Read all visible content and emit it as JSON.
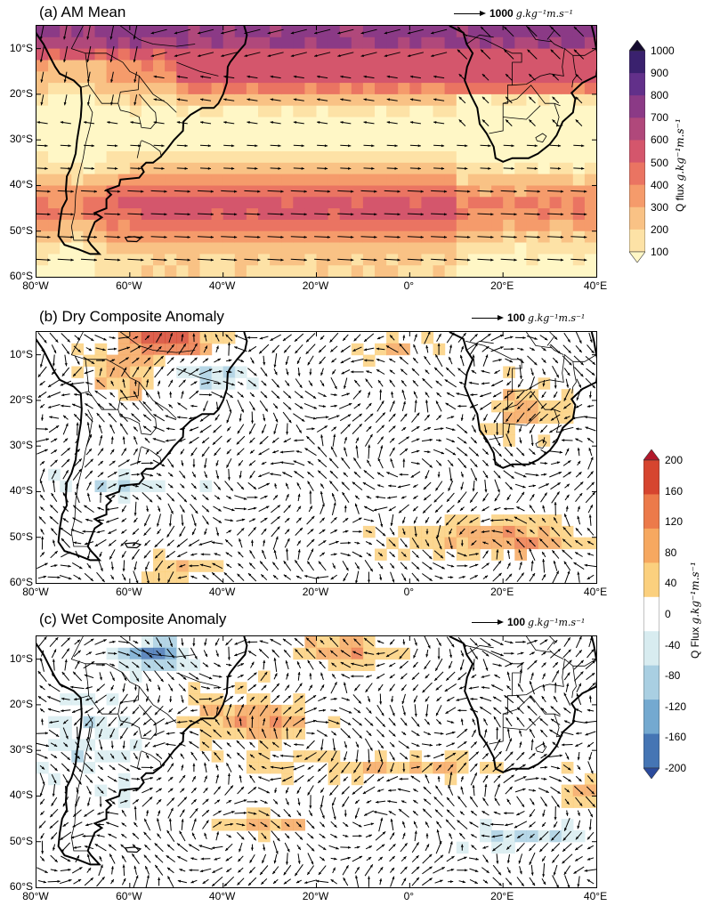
{
  "panels": [
    {
      "title": "(a) AM Mean",
      "ref_value": "1000",
      "ref_units": "g.kg⁻¹m.s⁻¹",
      "kind": "mean"
    },
    {
      "title": "(b) Dry Composite Anomaly",
      "ref_value": "100",
      "ref_units": "g.kg⁻¹m.s⁻¹",
      "kind": "dry"
    },
    {
      "title": "(c) Wet Composite Anomaly",
      "ref_value": "100",
      "ref_units": "g.kg⁻¹m.s⁻¹",
      "kind": "wet"
    }
  ],
  "lat_labels": [
    "10°S",
    "20°S",
    "30°S",
    "40°S",
    "50°S",
    "60°S"
  ],
  "lon_labels": [
    "80°W",
    "60°W",
    "40°W",
    "20°W",
    "0°",
    "20°E",
    "40°E"
  ],
  "colorbar_mean": {
    "label": "Q flux",
    "units": "g.kg⁻¹m.s⁻¹",
    "ticks": [
      "1000",
      "900",
      "800",
      "700",
      "600",
      "500",
      "400",
      "300",
      "200",
      "100"
    ],
    "colors": [
      "#fff7c6",
      "#fde2a6",
      "#f9c285",
      "#f59b6b",
      "#ea7462",
      "#d4566c",
      "#b0487b",
      "#8b3a86",
      "#62308a",
      "#3a216e",
      "#150b30"
    ]
  },
  "colorbar_anom": {
    "label": "Q Flux",
    "units": "g.kg⁻¹m.s⁻¹",
    "ticks": [
      "200",
      "160",
      "120",
      "80",
      "40",
      "0",
      "-40",
      "-80",
      "-120",
      "-160",
      "-200"
    ],
    "colors": [
      "#b2182b",
      "#d6452f",
      "#ec7a4a",
      "#f6a860",
      "#fbd07e",
      "#ffffff",
      "#d8ecf0",
      "#a9cfe2",
      "#74a9d0",
      "#4575b4",
      "#2a4a9c"
    ]
  }
}
